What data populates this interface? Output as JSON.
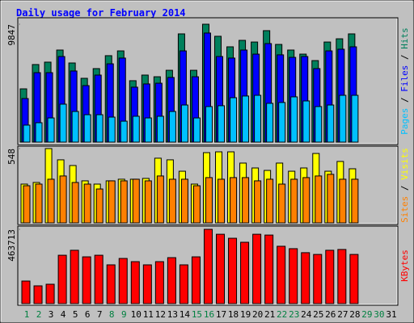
{
  "chart_data": [
    {
      "type": "bar",
      "title": "Daily usage for February 2014",
      "categories": [
        "1",
        "2",
        "3",
        "4",
        "5",
        "6",
        "7",
        "8",
        "9",
        "10",
        "11",
        "12",
        "13",
        "14",
        "15",
        "16",
        "17",
        "18",
        "19",
        "20",
        "21",
        "22",
        "23",
        "24",
        "25",
        "26",
        "27",
        "28",
        "29",
        "30",
        "31"
      ],
      "category_colors": [
        "#008040",
        "#008040",
        "#000000",
        "#000000",
        "#000000",
        "#000000",
        "#000000",
        "#008040",
        "#008040",
        "#000000",
        "#000000",
        "#000000",
        "#000000",
        "#000000",
        "#008040",
        "#008040",
        "#000000",
        "#000000",
        "#000000",
        "#000000",
        "#000000",
        "#008040",
        "#008040",
        "#000000",
        "#000000",
        "#000000",
        "#000000",
        "#000000",
        "#008040",
        "#008040",
        "#000000"
      ],
      "legend_separator": " / ",
      "ylim": [
        0,
        9847
      ],
      "yticks": [
        9847
      ],
      "series": [
        {
          "name": "Hits",
          "color": "#00805c",
          "values": [
            4450,
            6480,
            6680,
            7690,
            6610,
            5330,
            6140,
            7220,
            7620,
            5130,
            5600,
            5460,
            6000,
            9040,
            6000,
            9847,
            8840,
            7960,
            8500,
            8360,
            9310,
            8160,
            7690,
            7350,
            6810,
            8360,
            8630,
            9040,
            null,
            null,
            null
          ]
        },
        {
          "name": "Files",
          "color": "#0000ff",
          "values": [
            3640,
            5800,
            5800,
            7150,
            5940,
            4720,
            5600,
            6540,
            7020,
            4590,
            4860,
            4920,
            5400,
            7620,
            5460,
            9110,
            7150,
            7020,
            7690,
            7350,
            8230,
            7290,
            7080,
            7150,
            6140,
            7620,
            7760,
            7960,
            null,
            null,
            null
          ]
        },
        {
          "name": "Pages",
          "color": "#00c0ff",
          "values": [
            1420,
            1620,
            2020,
            3170,
            2560,
            2290,
            2290,
            2090,
            1750,
            2160,
            2020,
            2160,
            2560,
            3100,
            2020,
            2970,
            3040,
            3710,
            3850,
            3910,
            3240,
            3310,
            3780,
            3440,
            2970,
            3100,
            3910,
            3910,
            null,
            null,
            null
          ]
        }
      ]
    },
    {
      "type": "bar",
      "ylim": [
        0,
        548
      ],
      "yticks": [
        548
      ],
      "series": [
        {
          "name": "Visits",
          "color": "#ffff00",
          "values": [
            286,
            298,
            548,
            465,
            423,
            310,
            286,
            310,
            322,
            322,
            328,
            477,
            465,
            381,
            286,
            518,
            524,
            524,
            441,
            405,
            387,
            441,
            381,
            405,
            512,
            381,
            453,
            399,
            null,
            null,
            null
          ]
        },
        {
          "name": "Sites",
          "color": "#ff8000",
          "values": [
            274,
            286,
            322,
            346,
            298,
            286,
            250,
            310,
            310,
            322,
            310,
            346,
            322,
            322,
            274,
            334,
            322,
            334,
            334,
            310,
            322,
            286,
            322,
            334,
            346,
            358,
            322,
            322,
            null,
            null,
            null
          ]
        }
      ]
    },
    {
      "type": "bar",
      "ylim": [
        0,
        463713
      ],
      "yticks": [
        463713
      ],
      "series": [
        {
          "name": "KBytes",
          "color": "#ff0000",
          "values": [
            141000,
            111000,
            121000,
            302000,
            333000,
            292000,
            302000,
            242000,
            282000,
            262000,
            242000,
            262000,
            287000,
            242000,
            292000,
            463713,
            433000,
            408000,
            383000,
            433000,
            428000,
            358000,
            343000,
            318000,
            307000,
            333000,
            338000,
            307000,
            null,
            null,
            null
          ]
        }
      ]
    }
  ]
}
